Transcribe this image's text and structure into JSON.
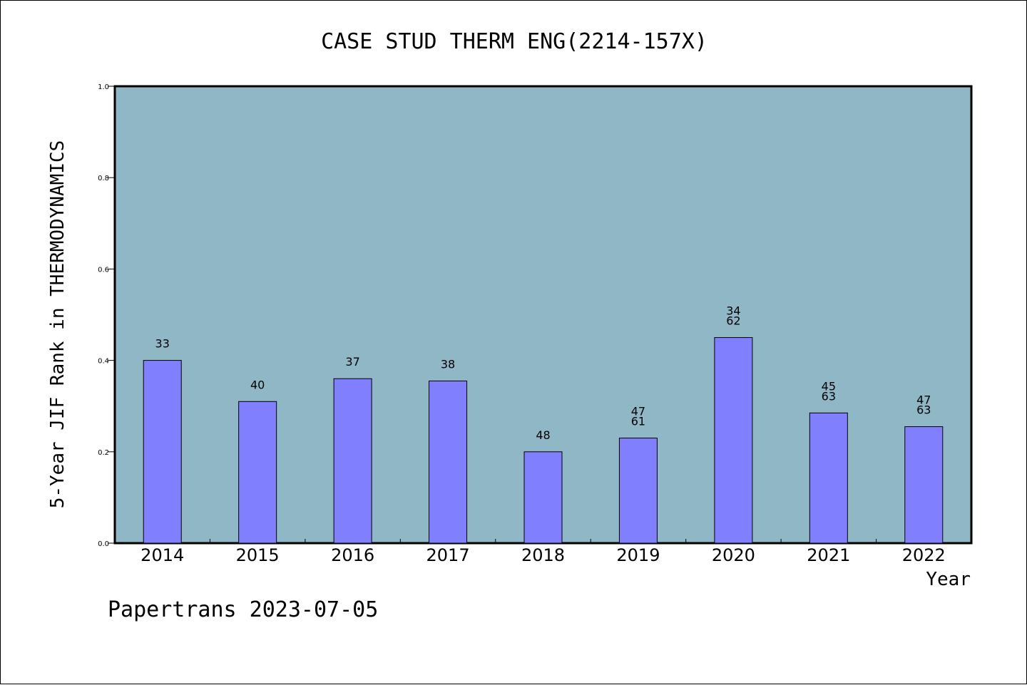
{
  "chart_data": {
    "type": "bar",
    "title": "CASE STUD THERM ENG(2214-157X)",
    "xlabel": "Year",
    "ylabel": "5-Year JIF Rank in THERMODYNAMICS",
    "ylim": [
      0,
      1.0
    ],
    "yticks": [
      "0.0",
      "0.2",
      "0.4",
      "0.6",
      "0.8",
      "1.0"
    ],
    "categories": [
      "2014",
      "2015",
      "2016",
      "2017",
      "2018",
      "2019",
      "2020",
      "2021",
      "2022"
    ],
    "values": [
      0.4,
      0.31,
      0.36,
      0.355,
      0.2,
      0.23,
      0.45,
      0.285,
      0.255
    ],
    "bar_labels": [
      [
        "33"
      ],
      [
        "40"
      ],
      [
        "37"
      ],
      [
        "38"
      ],
      [
        "48"
      ],
      [
        "47",
        "61"
      ],
      [
        "34",
        "62"
      ],
      [
        "45",
        "63"
      ],
      [
        "47",
        "63"
      ]
    ],
    "grid": false,
    "colors": {
      "plot_background": "#8fb7c6",
      "bar_fill": "#8080ff",
      "bar_stroke": "#000000",
      "axes": "#000000"
    }
  },
  "footer": {
    "note": "Papertrans 2023-07-05"
  }
}
